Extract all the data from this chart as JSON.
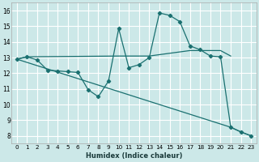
{
  "xlabel": "Humidex (Indice chaleur)",
  "xlim": [
    -0.5,
    23.5
  ],
  "ylim": [
    7.5,
    16.5
  ],
  "yticks": [
    8,
    9,
    10,
    11,
    12,
    13,
    14,
    15,
    16
  ],
  "xticks": [
    0,
    1,
    2,
    3,
    4,
    5,
    6,
    7,
    8,
    9,
    10,
    11,
    12,
    13,
    14,
    15,
    16,
    17,
    18,
    19,
    20,
    21,
    22,
    23
  ],
  "bg_color": "#cce8e8",
  "line_color": "#1a7070",
  "grid_color": "#b8d8d8",
  "line1_x": [
    0,
    1,
    2,
    3,
    4,
    5,
    6,
    7,
    8,
    9,
    10,
    11,
    12,
    13,
    14,
    15,
    16,
    17,
    18,
    19,
    20,
    21,
    22,
    23
  ],
  "line1_y": [
    12.9,
    13.05,
    12.85,
    12.2,
    12.15,
    12.1,
    12.05,
    10.95,
    10.5,
    11.5,
    14.85,
    12.35,
    12.55,
    13.0,
    15.85,
    15.7,
    15.3,
    13.75,
    13.5,
    13.1,
    13.05,
    8.55,
    8.25,
    8.0
  ],
  "line2_x": [
    0,
    21,
    22,
    23
  ],
  "line2_y": [
    12.9,
    8.55,
    8.25,
    8.0
  ],
  "line3_x": [
    0,
    1,
    10,
    13,
    17,
    20,
    21
  ],
  "line3_y": [
    12.9,
    13.05,
    13.1,
    13.1,
    13.45,
    13.45,
    13.1
  ]
}
